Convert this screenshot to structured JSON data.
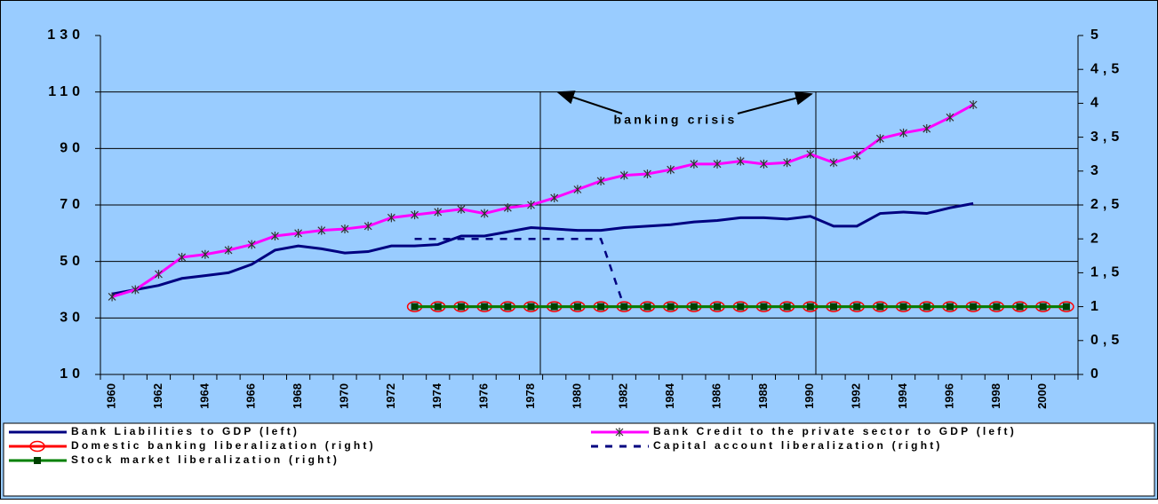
{
  "chart_data": {
    "type": "line",
    "categories": [
      1960,
      null,
      1962,
      null,
      1964,
      null,
      1966,
      null,
      1968,
      null,
      1970,
      null,
      1972,
      null,
      1974,
      null,
      1976,
      null,
      1978,
      null,
      1980,
      null,
      1982,
      null,
      1984,
      null,
      1986,
      null,
      1988,
      null,
      1990,
      null,
      1992,
      null,
      1994,
      null,
      1996,
      null,
      1998,
      null,
      2000,
      null
    ],
    "ylim": [
      10,
      130
    ],
    "yticks": [
      10,
      30,
      50,
      70,
      90,
      110,
      130
    ],
    "y2lim": [
      0,
      5
    ],
    "y2ticks": [
      0,
      {
        "value": 0.5,
        "label": "0,5"
      },
      1,
      {
        "value": 1.5,
        "label": "1,5"
      },
      2,
      {
        "value": 2.5,
        "label": "2,5"
      },
      3,
      {
        "value": 3.5,
        "label": "3,5"
      },
      4,
      {
        "value": 4.5,
        "label": "4,5"
      },
      5
    ],
    "grid": true,
    "annotations": [
      "banking crisis"
    ],
    "series": [
      {
        "name": "Bank Liabilities to GDP (left)",
        "color": "#000080",
        "marker": "none",
        "values": [
          38.5,
          40,
          41.5,
          44,
          45,
          46,
          49,
          54,
          55.5,
          54.5,
          53,
          53.5,
          55.5,
          55.5,
          56,
          59,
          59,
          60.5,
          62,
          61.5,
          61,
          61,
          62,
          62.5,
          63,
          64,
          64.5,
          65.5,
          65.5,
          65,
          66,
          62.5,
          62.5,
          67,
          67.5,
          67,
          69,
          70.5,
          null,
          null,
          null,
          null
        ]
      },
      {
        "name": "Bank Credit to the private sector to GDP (left)",
        "color": "#ff00ff",
        "marker": "star",
        "values": [
          37.5,
          40,
          45.5,
          51.5,
          52.5,
          54,
          56,
          59,
          60,
          61,
          61.5,
          62.5,
          65.5,
          66.5,
          67.5,
          68.5,
          67,
          69,
          70,
          72.5,
          75.5,
          78.5,
          80.5,
          81,
          82.5,
          84.5,
          84.5,
          85.5,
          84.5,
          85,
          88,
          85,
          87.5,
          93.5,
          95.5,
          97,
          101,
          105.5,
          null,
          null,
          null,
          null
        ]
      },
      {
        "name": "Domestic banking liberalization (right)",
        "color": "#ff0000",
        "marker": "circle",
        "axis": "y2",
        "values": [
          null,
          null,
          null,
          null,
          null,
          null,
          null,
          null,
          null,
          null,
          null,
          null,
          null,
          1,
          1,
          1,
          1,
          1,
          1,
          1,
          1,
          1,
          1,
          1,
          1,
          1,
          1,
          1,
          1,
          1,
          1,
          1,
          1,
          1,
          1,
          1,
          1,
          1,
          1,
          1,
          1,
          1
        ]
      },
      {
        "name": "Capital account liberalization (right)",
        "color": "#000080",
        "marker": "none",
        "dash": true,
        "axis": "y2",
        "values": [
          null,
          null,
          null,
          null,
          null,
          null,
          null,
          null,
          null,
          null,
          null,
          null,
          null,
          2,
          2,
          2,
          2,
          2,
          2,
          2,
          2,
          2,
          1,
          null,
          null,
          null,
          null,
          null,
          null,
          null,
          null,
          null,
          null,
          null,
          null,
          null,
          null,
          null,
          null,
          null,
          null,
          null
        ]
      },
      {
        "name": "Stock market liberalization (right)",
        "color": "#008000",
        "marker": "square",
        "axis": "y2",
        "values": [
          null,
          null,
          null,
          null,
          null,
          null,
          null,
          null,
          null,
          null,
          null,
          null,
          null,
          1,
          1,
          1,
          1,
          1,
          1,
          1,
          1,
          1,
          1,
          1,
          1,
          1,
          1,
          1,
          1,
          1,
          1,
          1,
          1,
          1,
          1,
          1,
          1,
          1,
          1,
          1,
          1,
          1
        ]
      }
    ]
  }
}
